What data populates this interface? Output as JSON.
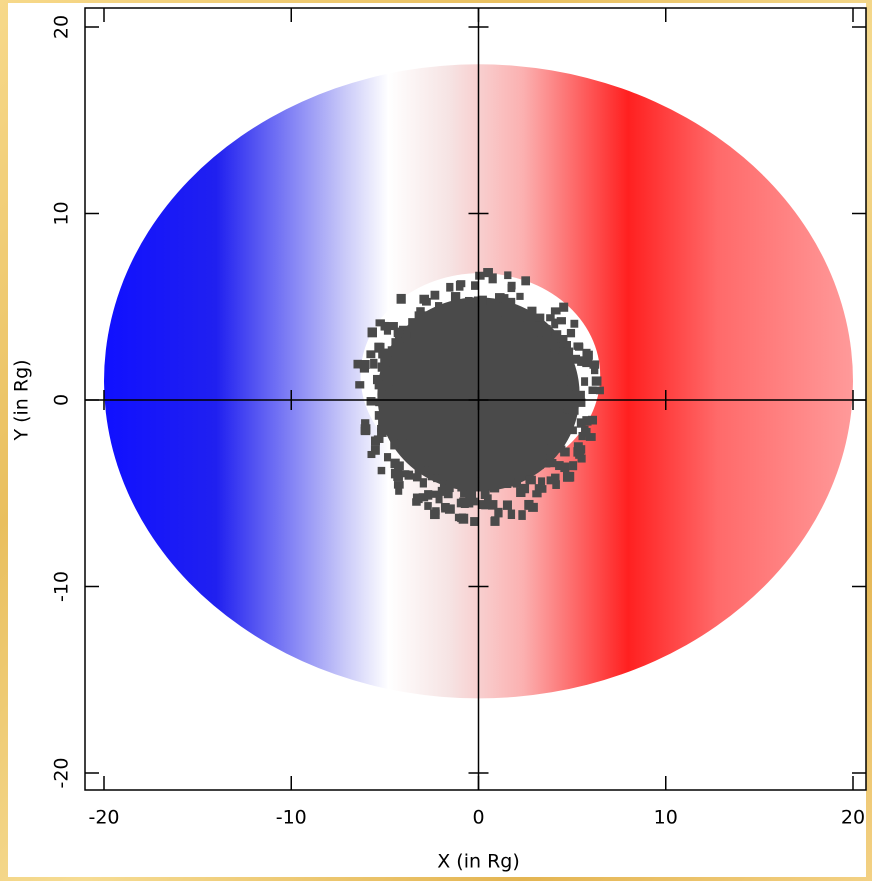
{
  "chart_data": {
    "type": "disk-map",
    "x_label": "X (in Rg)",
    "y_label": "Y (in Rg)",
    "xlim": [
      -20,
      20
    ],
    "ylim": [
      -20,
      20
    ],
    "xticks": [
      -20,
      -10,
      0,
      10,
      20
    ],
    "yticks": [
      -20,
      -10,
      0,
      10,
      20
    ],
    "grid": false
  }
}
